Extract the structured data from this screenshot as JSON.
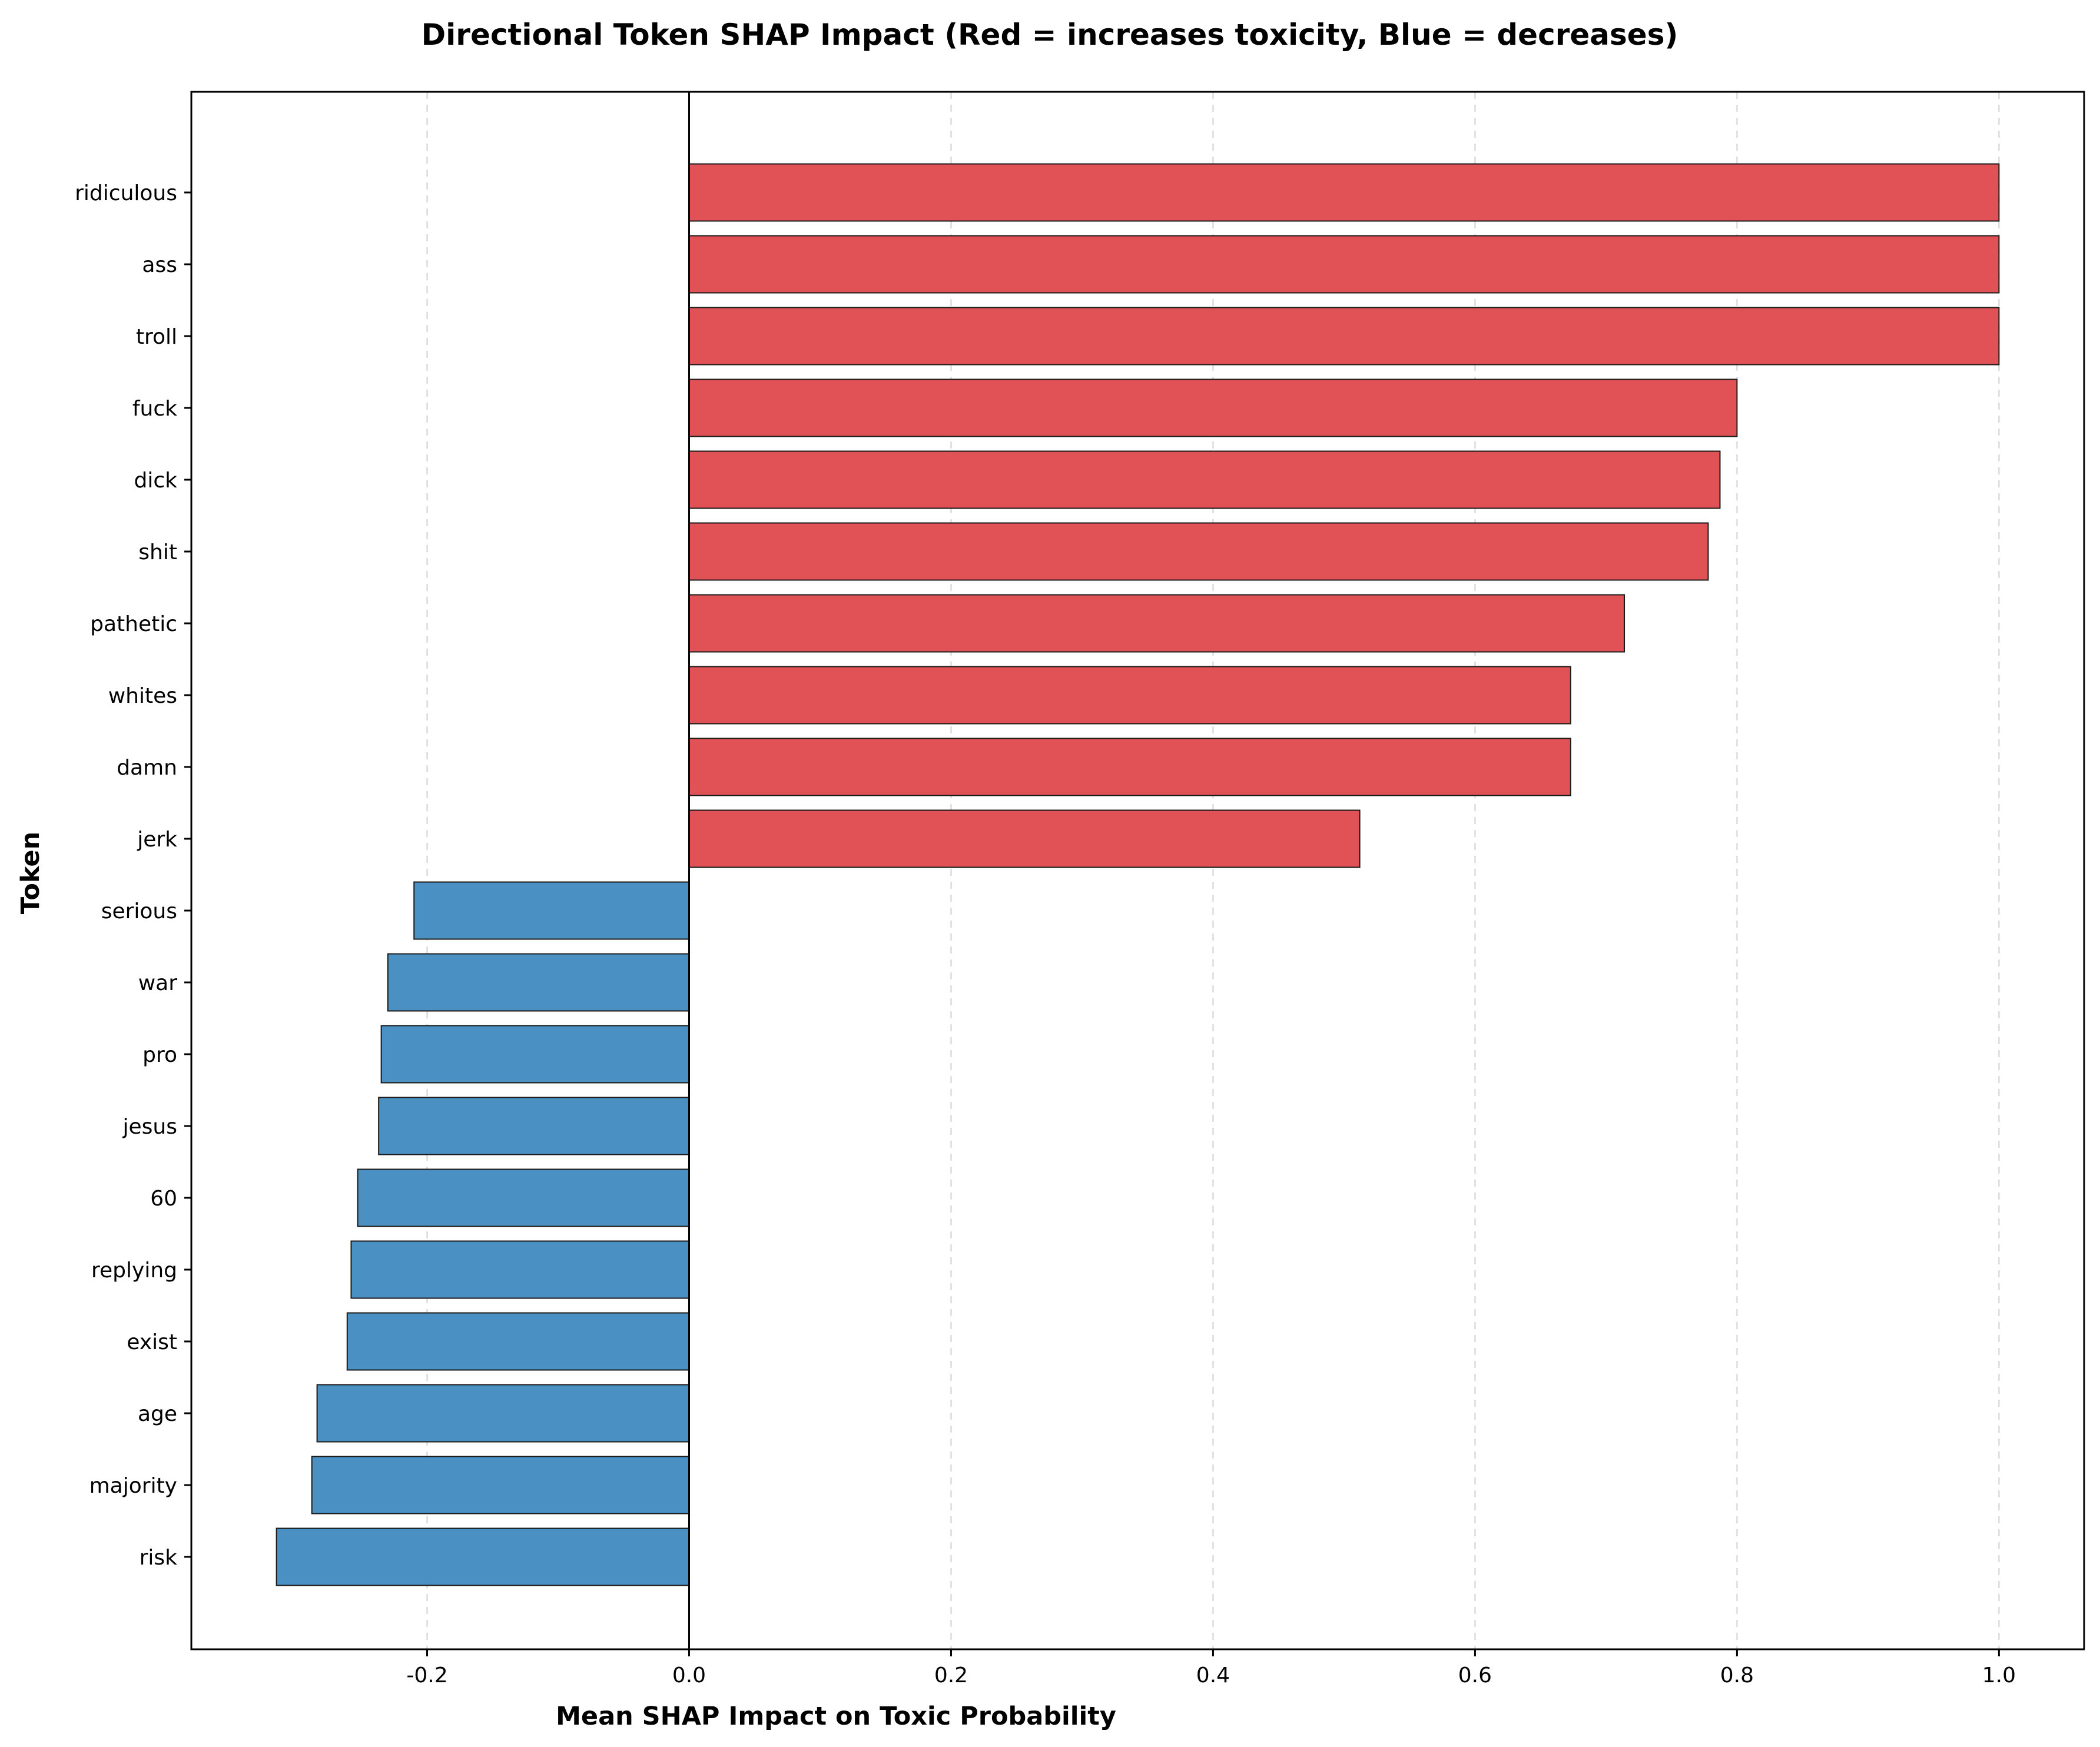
{
  "chart_data": {
    "type": "bar",
    "orientation": "horizontal",
    "title": "Directional Token SHAP Impact (Red = increases toxicity, Blue = decreases)",
    "xlabel": "Mean SHAP Impact on Toxic Probability",
    "ylabel": "Token",
    "xlim": [
      -0.38,
      1.065
    ],
    "xticks": [
      -0.2,
      0.0,
      0.2,
      0.4,
      0.6,
      0.8,
      1.0
    ],
    "xtick_labels": [
      "-0.2",
      "0.0",
      "0.2",
      "0.4",
      "0.6",
      "0.8",
      "1.0"
    ],
    "grid": "x-dashed",
    "colors": {
      "positive": "#e05256",
      "negative": "#4a90c2"
    },
    "categories": [
      "ridiculous",
      "ass",
      "troll",
      "fuck",
      "dick",
      "shit",
      "pathetic",
      "whites",
      "damn",
      "jerk",
      "serious",
      "war",
      "pro",
      "jesus",
      "60",
      "replying",
      "exist",
      "age",
      "majority",
      "risk"
    ],
    "values": [
      1.0,
      1.0,
      1.0,
      0.8,
      0.787,
      0.778,
      0.714,
      0.673,
      0.673,
      0.512,
      -0.21,
      -0.23,
      -0.235,
      -0.237,
      -0.253,
      -0.258,
      -0.261,
      -0.284,
      -0.288,
      -0.315
    ]
  }
}
